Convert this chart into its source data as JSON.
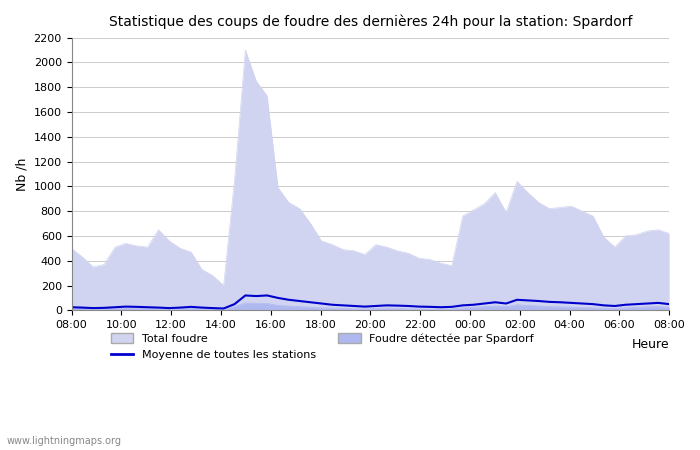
{
  "title": "Statistique des coups de foudre des dernières 24h pour la station: Spardorf",
  "xlabel": "Heure",
  "ylabel": "Nb /h",
  "ylim": [
    0,
    2200
  ],
  "yticks": [
    0,
    200,
    400,
    600,
    800,
    1000,
    1200,
    1400,
    1600,
    1800,
    2000,
    2200
  ],
  "x_labels": [
    "08:00",
    "10:00",
    "12:00",
    "14:00",
    "16:00",
    "18:00",
    "20:00",
    "22:00",
    "00:00",
    "02:00",
    "04:00",
    "06:00",
    "08:00"
  ],
  "background_color": "#ffffff",
  "total_foudre_color": "#d0d4f0",
  "spardorf_color": "#b0b8f0",
  "moyenne_color": "#0000cc",
  "watermark": "www.lightningmaps.org",
  "total_foudre": [
    500,
    430,
    350,
    370,
    510,
    540,
    520,
    510,
    650,
    560,
    500,
    470,
    330,
    280,
    200,
    1050,
    2100,
    1850,
    1730,
    990,
    870,
    820,
    700,
    560,
    530,
    490,
    480,
    450,
    530,
    510,
    480,
    460,
    420,
    410,
    380,
    360,
    760,
    810,
    860,
    950,
    790,
    1040,
    950,
    870,
    820,
    830,
    840,
    800,
    760,
    590,
    510,
    600,
    610,
    640,
    650,
    620
  ],
  "spardorf_foudre": [
    20,
    15,
    10,
    12,
    18,
    20,
    18,
    15,
    10,
    8,
    12,
    15,
    10,
    8,
    5,
    30,
    60,
    55,
    55,
    40,
    35,
    30,
    25,
    20,
    18,
    15,
    12,
    10,
    15,
    18,
    15,
    12,
    10,
    8,
    8,
    10,
    20,
    25,
    30,
    35,
    30,
    45,
    40,
    35,
    30,
    28,
    25,
    22,
    20,
    18,
    15,
    20,
    25,
    28,
    30,
    25
  ],
  "moyenne_stations": [
    25,
    22,
    18,
    20,
    25,
    30,
    28,
    25,
    22,
    18,
    22,
    28,
    22,
    18,
    15,
    50,
    120,
    115,
    120,
    100,
    85,
    75,
    65,
    55,
    45,
    40,
    35,
    30,
    35,
    40,
    38,
    35,
    30,
    28,
    25,
    28,
    40,
    45,
    55,
    65,
    55,
    85,
    80,
    75,
    68,
    65,
    60,
    55,
    50,
    40,
    35,
    45,
    50,
    55,
    60,
    50
  ]
}
